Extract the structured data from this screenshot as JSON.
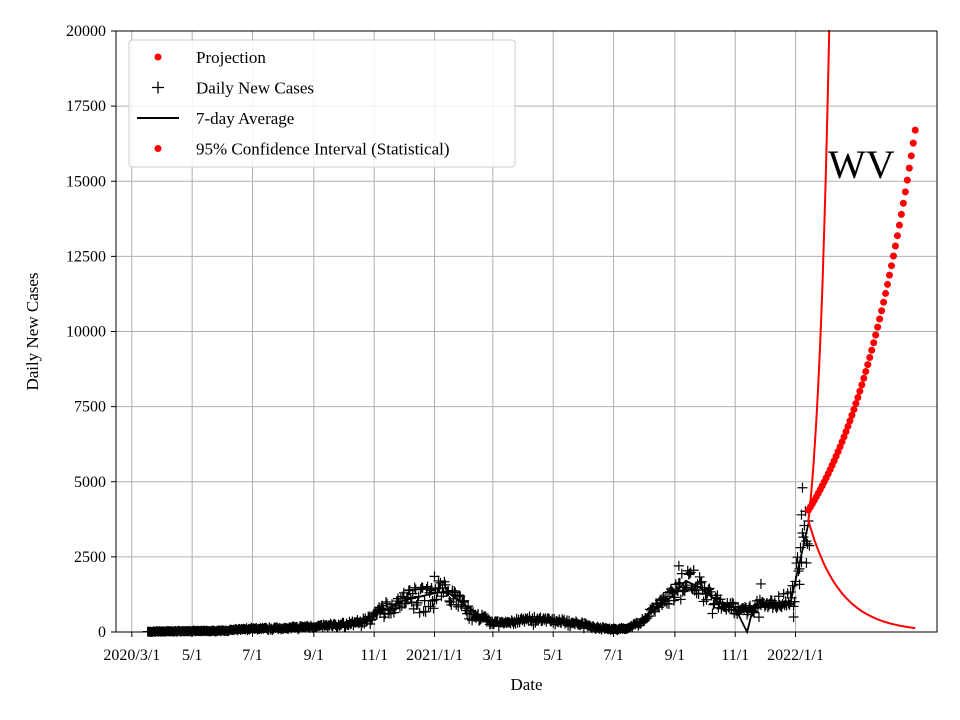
{
  "chart_data": {
    "type": "line",
    "title": "",
    "xlabel": "Date",
    "ylabel": "Daily New Cases",
    "annotation": "WV",
    "grid": true,
    "legend_position": "top-left",
    "x_type": "date",
    "xlim": [
      "2020-02-14",
      "2022-05-24"
    ],
    "ylim": [
      0,
      20000
    ],
    "y_ticks": [
      0,
      2500,
      5000,
      7500,
      10000,
      12500,
      15000,
      17500,
      20000
    ],
    "x_ticks": [
      {
        "date": "2020-03-01",
        "label": "2020/3/1"
      },
      {
        "date": "2020-05-01",
        "label": "5/1"
      },
      {
        "date": "2020-07-01",
        "label": "7/1"
      },
      {
        "date": "2020-09-01",
        "label": "9/1"
      },
      {
        "date": "2020-11-01",
        "label": "11/1"
      },
      {
        "date": "2021-01-01",
        "label": "2021/1/1"
      },
      {
        "date": "2021-03-01",
        "label": "3/1"
      },
      {
        "date": "2021-05-01",
        "label": "5/1"
      },
      {
        "date": "2021-07-01",
        "label": "7/1"
      },
      {
        "date": "2021-09-01",
        "label": "9/1"
      },
      {
        "date": "2021-11-01",
        "label": "11/1"
      },
      {
        "date": "2022-01-01",
        "label": "2022/1/1"
      }
    ],
    "colors": {
      "projection": "#ff0000",
      "daily": "#000000",
      "average": "#000000",
      "ci": "#ff0000",
      "grid": "#b0b0b0"
    },
    "legend": [
      {
        "label": "Projection",
        "marker": "dot",
        "color": "#ff0000"
      },
      {
        "label": "Daily New Cases",
        "marker": "plus",
        "color": "#000000"
      },
      {
        "label": "7-day Average",
        "marker": "line",
        "color": "#000000"
      },
      {
        "label": "95% Confidence Interval (Statistical)",
        "marker": "dot",
        "color": "#ff0000"
      }
    ],
    "daily_profile": [
      [
        "2020-03-17",
        0
      ],
      [
        "2020-04-01",
        20
      ],
      [
        "2020-05-01",
        30
      ],
      [
        "2020-06-01",
        40
      ],
      [
        "2020-07-01",
        110
      ],
      [
        "2020-08-01",
        130
      ],
      [
        "2020-09-01",
        180
      ],
      [
        "2020-10-01",
        250
      ],
      [
        "2020-10-20",
        350
      ],
      [
        "2020-11-01",
        550
      ],
      [
        "2020-11-15",
        900
      ],
      [
        "2020-12-01",
        1100
      ],
      [
        "2020-12-15",
        1250
      ],
      [
        "2021-01-01",
        1350
      ],
      [
        "2021-01-10",
        1400
      ],
      [
        "2021-01-25",
        1050
      ],
      [
        "2021-02-10",
        600
      ],
      [
        "2021-03-01",
        320
      ],
      [
        "2021-03-20",
        330
      ],
      [
        "2021-04-05",
        430
      ],
      [
        "2021-04-20",
        430
      ],
      [
        "2021-05-01",
        380
      ],
      [
        "2021-05-20",
        330
      ],
      [
        "2021-06-10",
        180
      ],
      [
        "2021-07-01",
        90
      ],
      [
        "2021-07-15",
        130
      ],
      [
        "2021-08-01",
        400
      ],
      [
        "2021-08-15",
        900
      ],
      [
        "2021-09-01",
        1300
      ],
      [
        "2021-09-12",
        1800
      ],
      [
        "2021-09-25",
        1600
      ],
      [
        "2021-10-10",
        1100
      ],
      [
        "2021-10-25",
        850
      ],
      [
        "2021-11-10",
        700
      ],
      [
        "2021-11-25",
        900
      ],
      [
        "2021-12-10",
        1000
      ],
      [
        "2021-12-25",
        1100
      ],
      [
        "2022-01-01",
        1800
      ],
      [
        "2022-01-10",
        3400
      ],
      [
        "2022-01-15",
        3600
      ]
    ],
    "average_profile": [
      [
        "2020-03-17",
        0
      ],
      [
        "2020-05-01",
        30
      ],
      [
        "2020-07-01",
        100
      ],
      [
        "2020-09-01",
        170
      ],
      [
        "2020-10-15",
        280
      ],
      [
        "2020-11-10",
        700
      ],
      [
        "2020-12-01",
        1050
      ],
      [
        "2020-12-20",
        1200
      ],
      [
        "2021-01-05",
        1320
      ],
      [
        "2021-01-15",
        1300
      ],
      [
        "2021-02-01",
        900
      ],
      [
        "2021-02-20",
        450
      ],
      [
        "2021-03-10",
        300
      ],
      [
        "2021-04-10",
        400
      ],
      [
        "2021-05-01",
        380
      ],
      [
        "2021-06-01",
        250
      ],
      [
        "2021-07-01",
        90
      ],
      [
        "2021-07-20",
        180
      ],
      [
        "2021-08-10",
        700
      ],
      [
        "2021-08-30",
        1200
      ],
      [
        "2021-09-12",
        1700
      ],
      [
        "2021-09-25",
        1500
      ],
      [
        "2021-10-15",
        1000
      ],
      [
        "2021-11-01",
        800
      ],
      [
        "2021-11-10",
        200
      ],
      [
        "2021-11-13",
        0
      ],
      [
        "2021-11-20",
        900
      ],
      [
        "2021-12-10",
        950
      ],
      [
        "2021-12-27",
        1000
      ],
      [
        "2022-01-05",
        2300
      ],
      [
        "2022-01-14",
        3600
      ]
    ],
    "projection": {
      "start_date": "2022-01-14",
      "end_date": "2022-05-02",
      "start_value": 4050,
      "end_value": 16700,
      "point_spacing_days": 2
    },
    "ci_upper": {
      "start_date": "2022-01-14",
      "cross_20000_date": "2022-02-04",
      "start_value": 3700
    },
    "ci_lower": {
      "start_date": "2022-01-14",
      "end_date": "2022-05-02",
      "start_value": 3700,
      "end_value": 130
    }
  }
}
